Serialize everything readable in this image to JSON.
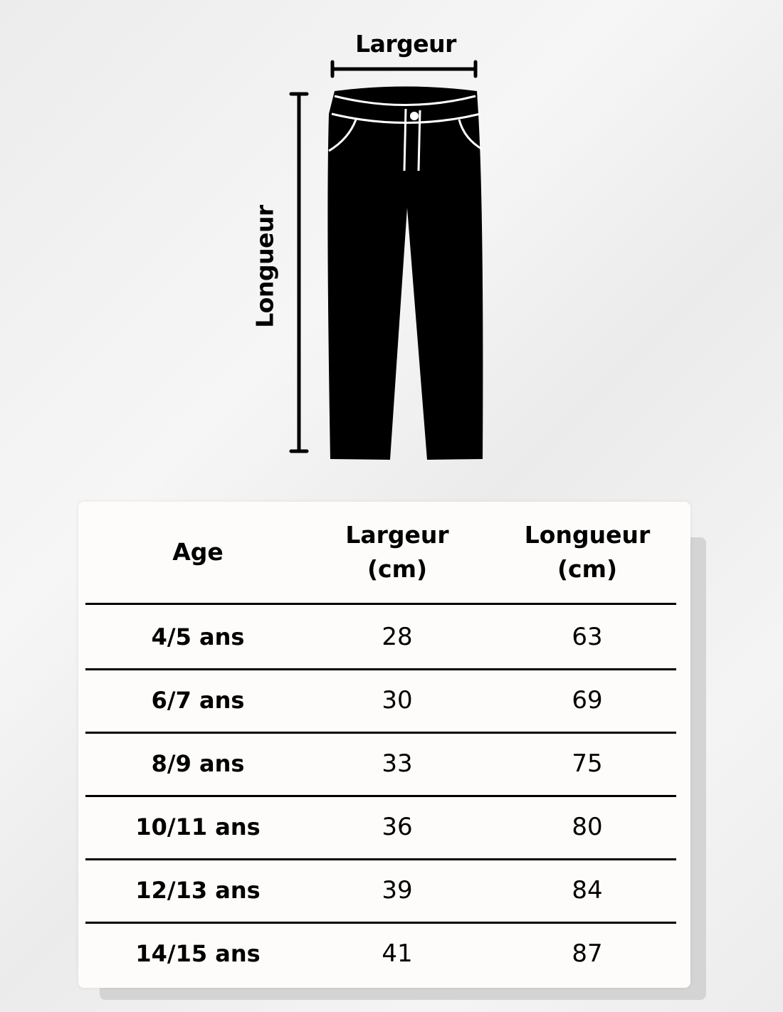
{
  "diagram": {
    "width_label": "Largeur",
    "length_label": "Longueur",
    "garment_icon": "pants-icon"
  },
  "table": {
    "header_lines": [
      [
        "Age"
      ],
      [
        "Largeur",
        "(cm)"
      ],
      [
        "Longueur",
        "(cm)"
      ]
    ],
    "rows": [
      [
        "4/5 ans",
        "28",
        "63"
      ],
      [
        "6/7 ans",
        "30",
        "69"
      ],
      [
        "8/9 ans",
        "33",
        "75"
      ],
      [
        "10/11 ans",
        "36",
        "80"
      ],
      [
        "12/13 ans",
        "39",
        "84"
      ],
      [
        "14/15 ans",
        "41",
        "87"
      ]
    ]
  }
}
